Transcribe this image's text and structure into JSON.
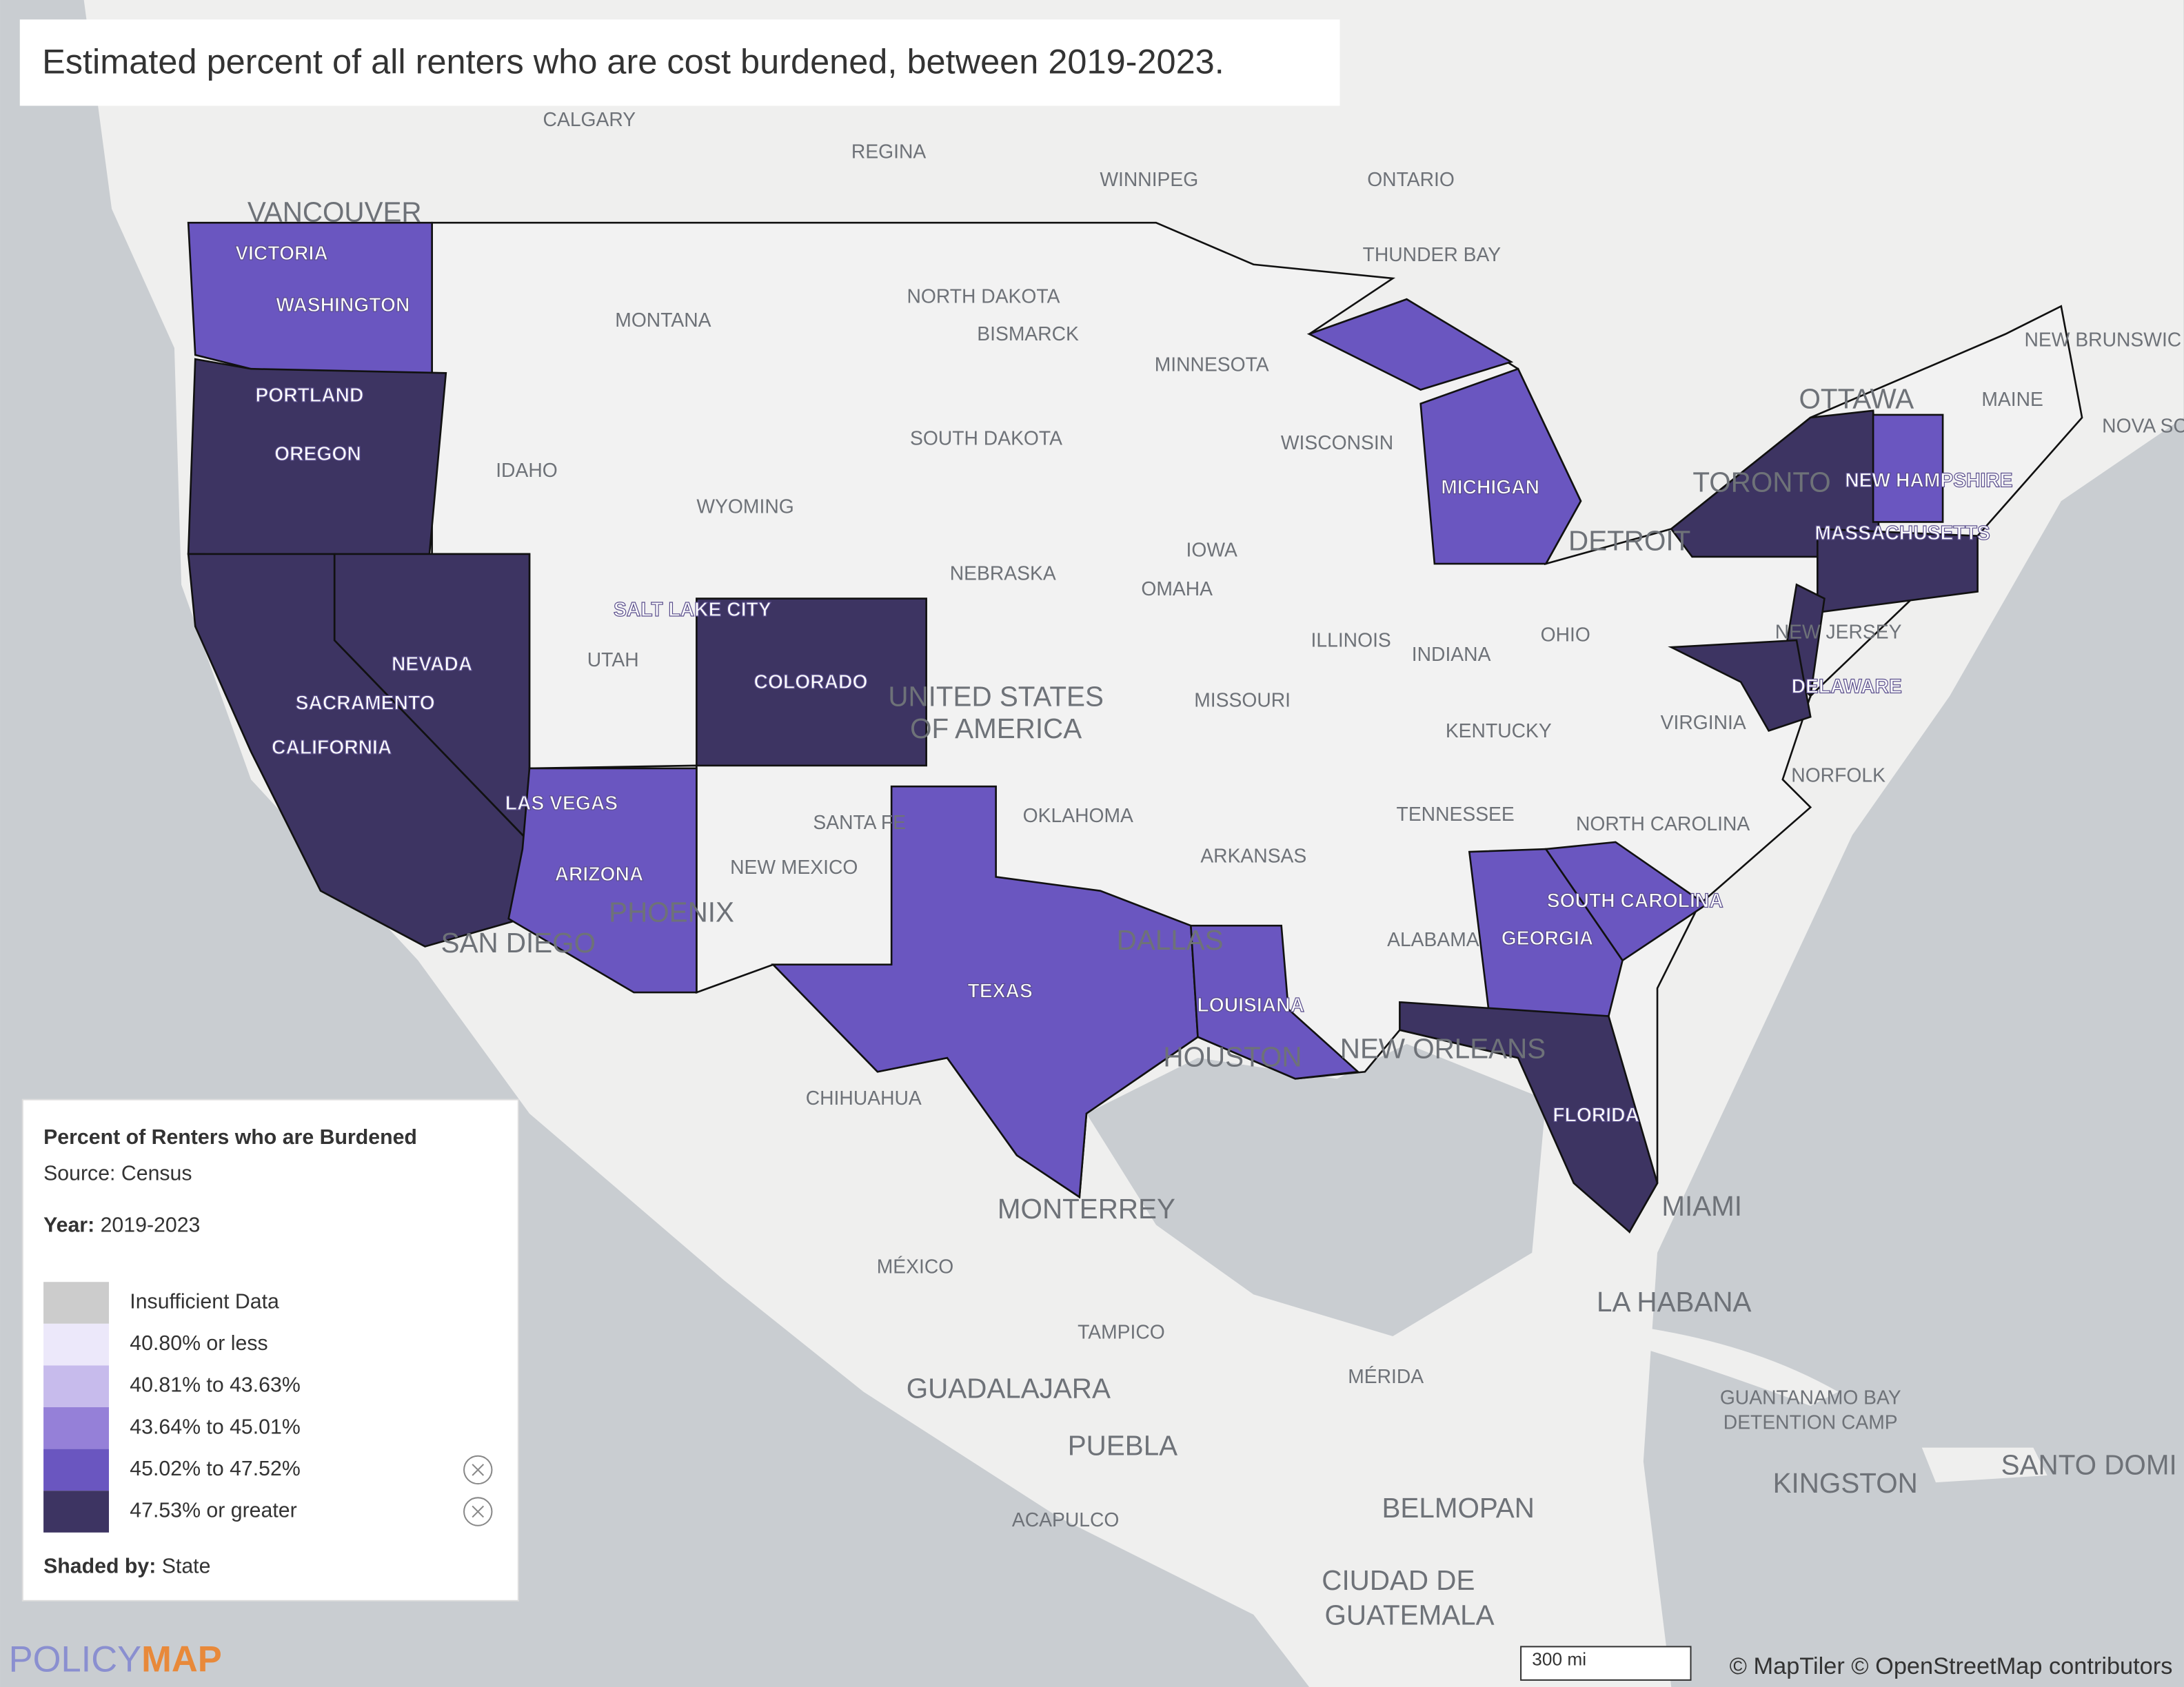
{
  "title": "Estimated percent of all renters who are cost burdened, between 2019-2023.",
  "legend": {
    "title": "Percent of Renters who are Burdened",
    "source": "Source: Census",
    "year_label": "Year:",
    "year": "2019-2023",
    "items": [
      {
        "label": "Insufficient Data",
        "color": "#cccccc"
      },
      {
        "label": "40.80% or less",
        "color": "#ece8fa"
      },
      {
        "label": "40.81% to 43.63%",
        "color": "#c7bbec"
      },
      {
        "label": "43.64% to 45.01%",
        "color": "#9580d8"
      },
      {
        "label": "45.02% to 47.52%",
        "color": "#6a56c0"
      },
      {
        "label": "47.53% or greater",
        "color": "#3d3462"
      }
    ],
    "shaded_by_label": "Shaded by:",
    "shaded_by": "State"
  },
  "map_labels": [
    "CALGARY",
    "REGINA",
    "WINNIPEG",
    "ONTARIO",
    "THUNDER BAY",
    "VANCOUVER",
    "VICTORIA",
    "WASHINGTON",
    "MONTANA",
    "NORTH DAKOTA",
    "BISMARCK",
    "MINNESOTA",
    "PORTLAND",
    "OREGON",
    "IDAHO",
    "SOUTH DAKOTA",
    "WYOMING",
    "WISCONSIN",
    "MICHIGAN",
    "NEBRASKA",
    "IOWA",
    "OMAHA",
    "SALT LAKE CITY",
    "UTAH",
    "NEVADA",
    "COLORADO",
    "UNITED STATES",
    "OF AMERICA",
    "ILLINOIS",
    "INDIANA",
    "OHIO",
    "SACRAMENTO",
    "CALIFORNIA",
    "MISSOURI",
    "KENTUCKY",
    "VIRGINIA",
    "LAS VEGAS",
    "SANTA FE",
    "OKLAHOMA",
    "TENNESSEE",
    "NORTH CAROLINA",
    "NORFOLK",
    "ARIZONA",
    "NEW MEXICO",
    "ARKANSAS",
    "PHOENIX",
    "SAN DIEGO",
    "DALLAS",
    "ALABAMA",
    "GEORGIA",
    "SOUTH CAROLINA",
    "TEXAS",
    "LOUISIANA",
    "HOUSTON",
    "NEW ORLEANS",
    "CHIHUAHUA",
    "FLORIDA",
    "MONTERREY",
    "MIAMI",
    "MÉXICO",
    "LA HABANA",
    "TAMPICO",
    "MÉRIDA",
    "GUADALAJARA",
    "PUEBLA",
    "GUANTANAMO BAY",
    "DETENTION CAMP",
    "KINGSTON",
    "SANTO DOMI",
    "ACAPULCO",
    "BELMOPAN",
    "CIUDAD DE",
    "GUATEMALA",
    "OTTAWA",
    "TORONTO",
    "DETROIT",
    "NEW HAMPSHIRE",
    "MASSACHUSETTS",
    "NEW JERSEY",
    "DELAWARE",
    "MAINE",
    "NEW BRUNSWIC",
    "NOVA SC"
  ],
  "scale": "300 mi",
  "attribution": "© MapTiler © OpenStreetMap contributors",
  "logo": {
    "first": "POLICY",
    "second": "MAP"
  }
}
